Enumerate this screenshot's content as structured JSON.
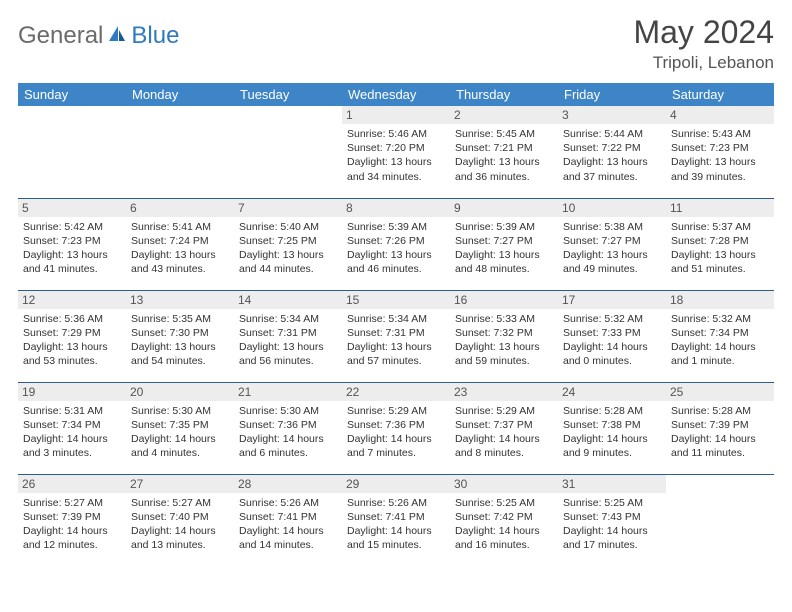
{
  "brand": {
    "part1": "General",
    "part2": "Blue"
  },
  "title": "May 2024",
  "location": "Tripoli, Lebanon",
  "days": [
    "Sunday",
    "Monday",
    "Tuesday",
    "Wednesday",
    "Thursday",
    "Friday",
    "Saturday"
  ],
  "colors": {
    "header_bg": "#3d85c6",
    "header_text": "#ffffff",
    "daynum_bg": "#ededed",
    "border": "#2f5d8a",
    "logo_gray": "#6b6b6b",
    "logo_blue": "#2f7ac0"
  },
  "weeks": [
    [
      null,
      null,
      null,
      {
        "n": "1",
        "sr": "Sunrise: 5:46 AM",
        "ss": "Sunset: 7:20 PM",
        "dl": "Daylight: 13 hours and 34 minutes."
      },
      {
        "n": "2",
        "sr": "Sunrise: 5:45 AM",
        "ss": "Sunset: 7:21 PM",
        "dl": "Daylight: 13 hours and 36 minutes."
      },
      {
        "n": "3",
        "sr": "Sunrise: 5:44 AM",
        "ss": "Sunset: 7:22 PM",
        "dl": "Daylight: 13 hours and 37 minutes."
      },
      {
        "n": "4",
        "sr": "Sunrise: 5:43 AM",
        "ss": "Sunset: 7:23 PM",
        "dl": "Daylight: 13 hours and 39 minutes."
      }
    ],
    [
      {
        "n": "5",
        "sr": "Sunrise: 5:42 AM",
        "ss": "Sunset: 7:23 PM",
        "dl": "Daylight: 13 hours and 41 minutes."
      },
      {
        "n": "6",
        "sr": "Sunrise: 5:41 AM",
        "ss": "Sunset: 7:24 PM",
        "dl": "Daylight: 13 hours and 43 minutes."
      },
      {
        "n": "7",
        "sr": "Sunrise: 5:40 AM",
        "ss": "Sunset: 7:25 PM",
        "dl": "Daylight: 13 hours and 44 minutes."
      },
      {
        "n": "8",
        "sr": "Sunrise: 5:39 AM",
        "ss": "Sunset: 7:26 PM",
        "dl": "Daylight: 13 hours and 46 minutes."
      },
      {
        "n": "9",
        "sr": "Sunrise: 5:39 AM",
        "ss": "Sunset: 7:27 PM",
        "dl": "Daylight: 13 hours and 48 minutes."
      },
      {
        "n": "10",
        "sr": "Sunrise: 5:38 AM",
        "ss": "Sunset: 7:27 PM",
        "dl": "Daylight: 13 hours and 49 minutes."
      },
      {
        "n": "11",
        "sr": "Sunrise: 5:37 AM",
        "ss": "Sunset: 7:28 PM",
        "dl": "Daylight: 13 hours and 51 minutes."
      }
    ],
    [
      {
        "n": "12",
        "sr": "Sunrise: 5:36 AM",
        "ss": "Sunset: 7:29 PM",
        "dl": "Daylight: 13 hours and 53 minutes."
      },
      {
        "n": "13",
        "sr": "Sunrise: 5:35 AM",
        "ss": "Sunset: 7:30 PM",
        "dl": "Daylight: 13 hours and 54 minutes."
      },
      {
        "n": "14",
        "sr": "Sunrise: 5:34 AM",
        "ss": "Sunset: 7:31 PM",
        "dl": "Daylight: 13 hours and 56 minutes."
      },
      {
        "n": "15",
        "sr": "Sunrise: 5:34 AM",
        "ss": "Sunset: 7:31 PM",
        "dl": "Daylight: 13 hours and 57 minutes."
      },
      {
        "n": "16",
        "sr": "Sunrise: 5:33 AM",
        "ss": "Sunset: 7:32 PM",
        "dl": "Daylight: 13 hours and 59 minutes."
      },
      {
        "n": "17",
        "sr": "Sunrise: 5:32 AM",
        "ss": "Sunset: 7:33 PM",
        "dl": "Daylight: 14 hours and 0 minutes."
      },
      {
        "n": "18",
        "sr": "Sunrise: 5:32 AM",
        "ss": "Sunset: 7:34 PM",
        "dl": "Daylight: 14 hours and 1 minute."
      }
    ],
    [
      {
        "n": "19",
        "sr": "Sunrise: 5:31 AM",
        "ss": "Sunset: 7:34 PM",
        "dl": "Daylight: 14 hours and 3 minutes."
      },
      {
        "n": "20",
        "sr": "Sunrise: 5:30 AM",
        "ss": "Sunset: 7:35 PM",
        "dl": "Daylight: 14 hours and 4 minutes."
      },
      {
        "n": "21",
        "sr": "Sunrise: 5:30 AM",
        "ss": "Sunset: 7:36 PM",
        "dl": "Daylight: 14 hours and 6 minutes."
      },
      {
        "n": "22",
        "sr": "Sunrise: 5:29 AM",
        "ss": "Sunset: 7:36 PM",
        "dl": "Daylight: 14 hours and 7 minutes."
      },
      {
        "n": "23",
        "sr": "Sunrise: 5:29 AM",
        "ss": "Sunset: 7:37 PM",
        "dl": "Daylight: 14 hours and 8 minutes."
      },
      {
        "n": "24",
        "sr": "Sunrise: 5:28 AM",
        "ss": "Sunset: 7:38 PM",
        "dl": "Daylight: 14 hours and 9 minutes."
      },
      {
        "n": "25",
        "sr": "Sunrise: 5:28 AM",
        "ss": "Sunset: 7:39 PM",
        "dl": "Daylight: 14 hours and 11 minutes."
      }
    ],
    [
      {
        "n": "26",
        "sr": "Sunrise: 5:27 AM",
        "ss": "Sunset: 7:39 PM",
        "dl": "Daylight: 14 hours and 12 minutes."
      },
      {
        "n": "27",
        "sr": "Sunrise: 5:27 AM",
        "ss": "Sunset: 7:40 PM",
        "dl": "Daylight: 14 hours and 13 minutes."
      },
      {
        "n": "28",
        "sr": "Sunrise: 5:26 AM",
        "ss": "Sunset: 7:41 PM",
        "dl": "Daylight: 14 hours and 14 minutes."
      },
      {
        "n": "29",
        "sr": "Sunrise: 5:26 AM",
        "ss": "Sunset: 7:41 PM",
        "dl": "Daylight: 14 hours and 15 minutes."
      },
      {
        "n": "30",
        "sr": "Sunrise: 5:25 AM",
        "ss": "Sunset: 7:42 PM",
        "dl": "Daylight: 14 hours and 16 minutes."
      },
      {
        "n": "31",
        "sr": "Sunrise: 5:25 AM",
        "ss": "Sunset: 7:43 PM",
        "dl": "Daylight: 14 hours and 17 minutes."
      },
      null
    ]
  ]
}
